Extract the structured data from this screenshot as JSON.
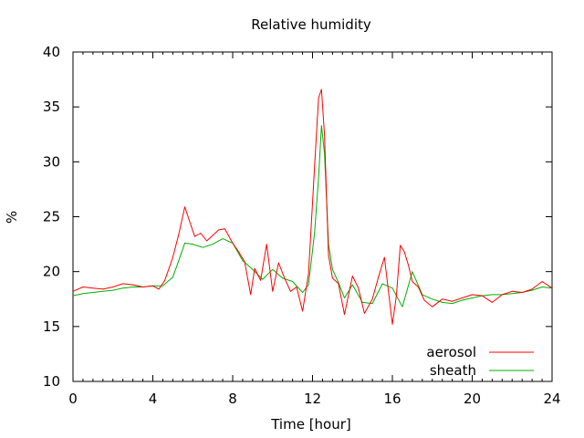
{
  "chart_data": {
    "type": "line",
    "title": "Relative humidity",
    "xlabel": "Time [hour]",
    "ylabel": "%",
    "xlim": [
      0,
      24
    ],
    "ylim": [
      10,
      40
    ],
    "x_ticks": [
      0,
      4,
      8,
      12,
      16,
      20,
      24
    ],
    "y_ticks": [
      10,
      15,
      20,
      25,
      30,
      35,
      40
    ],
    "legend_position": "bottom-right",
    "grid": false,
    "series": [
      {
        "name": "aerosol",
        "color": "#ff0000",
        "x": [
          0,
          0.5,
          1,
          1.5,
          2,
          2.5,
          3,
          3.5,
          4,
          4.3,
          4.6,
          5,
          5.3,
          5.6,
          5.8,
          6.1,
          6.4,
          6.7,
          7,
          7.3,
          7.6,
          8,
          8.3,
          8.6,
          8.9,
          9.1,
          9.4,
          9.7,
          10,
          10.3,
          10.6,
          10.9,
          11.2,
          11.5,
          11.8,
          12.1,
          12.3,
          12.45,
          12.6,
          12.8,
          13,
          13.3,
          13.6,
          14,
          14.3,
          14.6,
          15,
          15.3,
          15.6,
          16,
          16.2,
          16.4,
          16.6,
          16.8,
          17,
          17.3,
          17.6,
          18,
          18.5,
          19,
          19.5,
          20,
          20.5,
          21,
          21.5,
          22,
          22.5,
          23,
          23.5,
          24
        ],
        "values": [
          18.2,
          18.6,
          18.5,
          18.4,
          18.6,
          18.9,
          18.8,
          18.6,
          18.7,
          18.4,
          19.2,
          21.3,
          23.4,
          25.9,
          24.8,
          23.2,
          23.5,
          22.8,
          23.3,
          23.8,
          23.9,
          22.6,
          21.8,
          20.9,
          17.9,
          20.3,
          19.2,
          22.5,
          18.2,
          20.8,
          19.4,
          18.2,
          18.6,
          16.4,
          19.8,
          29.5,
          35.8,
          36.6,
          32.5,
          21.5,
          19.4,
          18.9,
          16.1,
          19.6,
          18.5,
          16.2,
          17.5,
          19.5,
          21.3,
          15.2,
          17.8,
          22.4,
          21.8,
          20.6,
          19.1,
          18.6,
          17.4,
          16.8,
          17.5,
          17.3,
          17.6,
          17.9,
          17.8,
          17.2,
          17.9,
          18.2,
          18.1,
          18.4,
          19.1,
          18.5
        ]
      },
      {
        "name": "sheath",
        "color": "#00b000",
        "x": [
          0,
          0.5,
          1,
          1.5,
          2,
          2.5,
          3,
          3.5,
          4,
          4.5,
          5,
          5.3,
          5.6,
          6,
          6.5,
          7,
          7.5,
          8,
          8.5,
          9,
          9.5,
          10,
          10.5,
          11,
          11.5,
          11.8,
          12.1,
          12.3,
          12.45,
          12.6,
          12.8,
          13,
          13.3,
          13.6,
          14,
          14.5,
          15,
          15.5,
          16,
          16.5,
          17,
          17.5,
          18,
          18.5,
          19,
          19.5,
          20,
          20.5,
          21,
          21.5,
          22,
          22.5,
          23,
          23.5,
          24
        ],
        "values": [
          17.8,
          18,
          18.1,
          18.2,
          18.3,
          18.5,
          18.6,
          18.6,
          18.7,
          18.7,
          19.5,
          21,
          22.6,
          22.5,
          22.2,
          22.5,
          23,
          22.6,
          21,
          20.2,
          19.3,
          20.2,
          19.4,
          19.1,
          18.1,
          18.8,
          23.5,
          28.5,
          33.3,
          30.8,
          22.5,
          20.2,
          19,
          17.6,
          18.8,
          17.2,
          17.1,
          18.9,
          18.5,
          16.8,
          20,
          17.9,
          17.5,
          17.2,
          17.1,
          17.4,
          17.6,
          17.8,
          17.9,
          17.9,
          18,
          18.1,
          18.3,
          18.6,
          18.5
        ]
      }
    ]
  }
}
